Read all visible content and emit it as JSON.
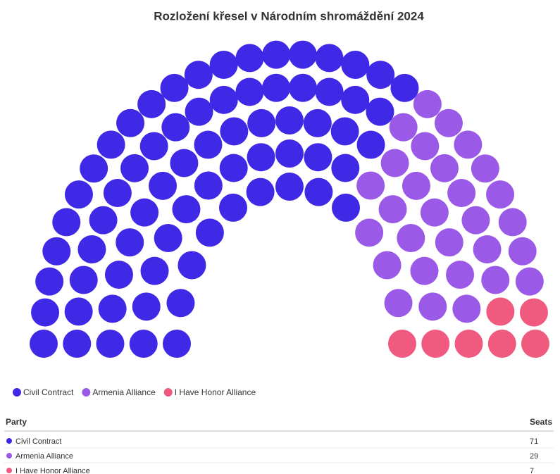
{
  "chart_data": {
    "type": "parliament",
    "title": "Rozložení křesel v Národním shromáždění 2024",
    "categories": [
      "Civil Contract",
      "Armenia Alliance",
      "I Have Honor Alliance"
    ],
    "values": [
      71,
      29,
      7
    ],
    "colors": [
      "#3f28e6",
      "#9b59e8",
      "#f05a7e"
    ],
    "legend": "bottom-left"
  },
  "table": {
    "columns": [
      "Party",
      "Seats"
    ]
  }
}
